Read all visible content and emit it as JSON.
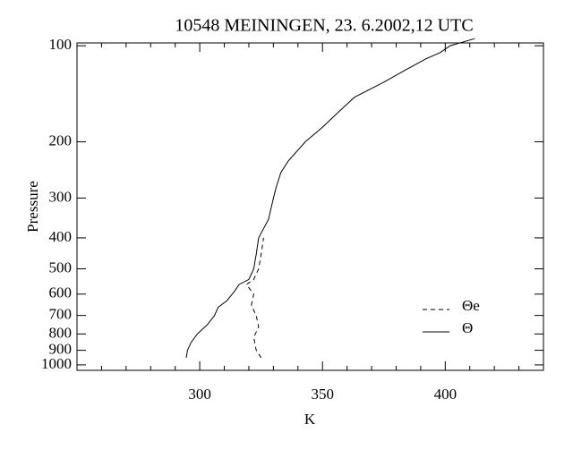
{
  "chart_data": {
    "type": "line",
    "title": "10548  MEININGEN, 23. 6.2002,12 UTC",
    "x_label": "K",
    "y_label": "Pressure",
    "xlim": [
      250,
      440
    ],
    "xticks": [
      300,
      350,
      400
    ],
    "xminor_ticks": [
      260,
      270,
      280,
      290,
      310,
      320,
      330,
      340,
      360,
      370,
      380,
      390,
      410,
      420,
      430
    ],
    "ylim": [
      1040,
      98
    ],
    "y_scale": "log",
    "yticks": [
      100,
      200,
      300,
      400,
      500,
      600,
      700,
      800,
      900,
      1000
    ],
    "legend": "lower right",
    "series": [
      {
        "name": "Θe",
        "color": "#000000",
        "dash": true,
        "x": [
          325,
          323,
          322,
          324,
          323,
          321,
          322,
          319,
          322,
          324,
          325,
          326
        ],
        "y": [
          950,
          900,
          820,
          760,
          700,
          650,
          600,
          560,
          540,
          500,
          450,
          400
        ]
      },
      {
        "name": "Θ",
        "color": "#000000",
        "dash": false,
        "x": [
          294.5,
          295,
          296.5,
          299,
          303,
          306,
          307.5,
          311,
          314,
          316,
          320,
          322,
          323,
          324,
          328,
          330,
          331,
          333,
          336,
          343,
          350,
          357,
          363,
          375,
          383,
          392,
          398,
          402,
          412
        ],
        "y": [
          950,
          900,
          850,
          800,
          750,
          700,
          660,
          630,
          590,
          560,
          540,
          500,
          450,
          400,
          350,
          300,
          280,
          250,
          230,
          200,
          180,
          160,
          145,
          130,
          120,
          110,
          105,
          100,
          95
        ]
      }
    ]
  }
}
